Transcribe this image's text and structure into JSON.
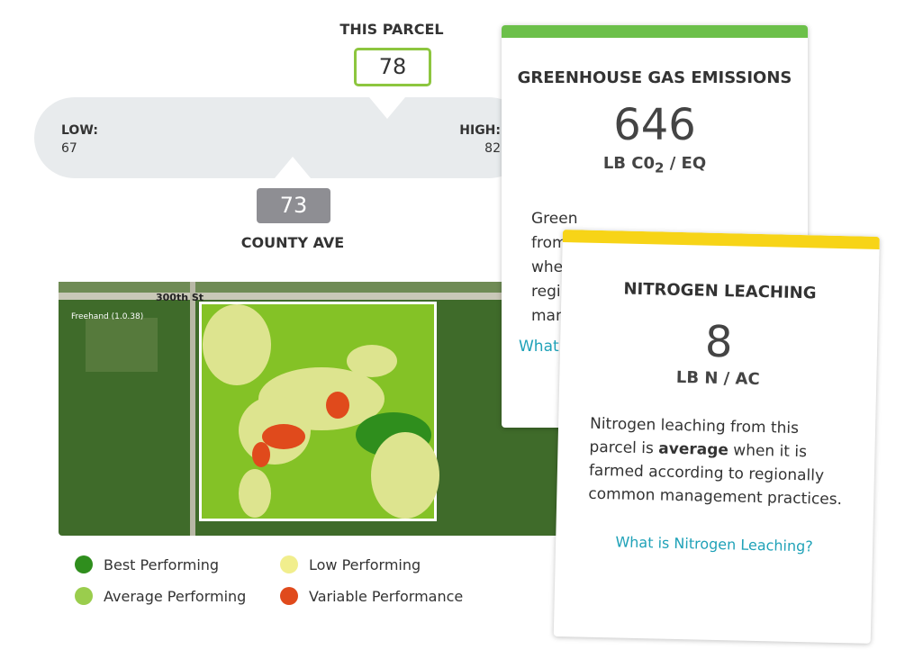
{
  "comparison": {
    "parcel_label": "THIS PARCEL",
    "parcel_value": "78",
    "low_label": "LOW:",
    "low_value": "67",
    "high_label": "HIGH:",
    "high_value": "82",
    "county_value": "73",
    "county_label": "COUNTY AVE"
  },
  "map": {
    "road_label": "300th St",
    "tool_label": "Freehand (1.0.38)"
  },
  "legend": [
    "Best Performing",
    "Low Performing",
    "Average Performing",
    "Variable Performance"
  ],
  "ghg_card": {
    "title": "GREENHOUSE GAS EMISSIONS",
    "value": "646",
    "unit_main": "LB C0",
    "unit_sub": "2",
    "unit_rest": " / EQ",
    "text_lines": [
      "Green",
      "from",
      "wher",
      "regio",
      "mana"
    ],
    "link": "What a"
  },
  "nitrogen_card": {
    "title": "NITROGEN LEACHING",
    "value": "8",
    "unit": "LB N / AC",
    "text_start": "Nitrogen leaching from this parcel is ",
    "text_bold": "average",
    "text_end": " when it is farmed according to regionally common management practices.",
    "link": "What is Nitrogen Leaching?"
  }
}
